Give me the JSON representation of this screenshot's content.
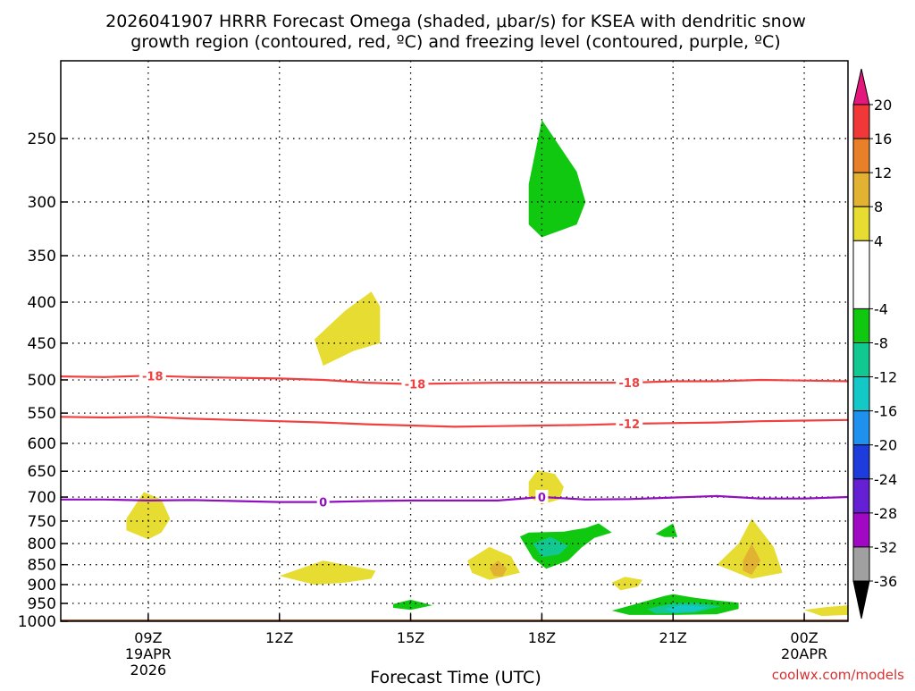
{
  "chart_data": {
    "type": "heatmap",
    "title_line1": "2026041907 HRRR Forecast Omega (shaded, μbar/s) for KSEA with dendritic snow",
    "title_line2": "growth region (contoured, red, ºC) and freezing level (contoured, purple, ºC)",
    "xlabel": "Forecast Time (UTC)",
    "credit": "coolwx.com/models",
    "ylim": [
      1000,
      200
    ],
    "xlim_hours": [
      7,
      25
    ],
    "y_ticks": [
      250,
      300,
      350,
      400,
      450,
      500,
      550,
      600,
      650,
      700,
      750,
      800,
      850,
      900,
      950,
      1000
    ],
    "x_ticks": [
      {
        "hour": 9,
        "label": "09Z",
        "date": "19APR",
        "year": "2026"
      },
      {
        "hour": 12,
        "label": "12Z",
        "date": "",
        "year": ""
      },
      {
        "hour": 15,
        "label": "15Z",
        "date": "",
        "year": ""
      },
      {
        "hour": 18,
        "label": "18Z",
        "date": "",
        "year": ""
      },
      {
        "hour": 21,
        "label": "21Z",
        "date": "",
        "year": ""
      },
      {
        "hour": 24,
        "label": "00Z",
        "date": "20APR",
        "year": ""
      }
    ],
    "colorbar": {
      "labels": [
        "20",
        "16",
        "12",
        "8",
        "4",
        "-4",
        "-8",
        "-12",
        "-16",
        "-20",
        "-24",
        "-28",
        "-32",
        "-36"
      ],
      "levels": [
        {
          "from": 16,
          "to": 20,
          "color": "#f03838"
        },
        {
          "from": 12,
          "to": 16,
          "color": "#e8802a"
        },
        {
          "from": 8,
          "to": 12,
          "color": "#e2b232"
        },
        {
          "from": 4,
          "to": 8,
          "color": "#e6dc32"
        },
        {
          "from": -4,
          "to": 4,
          "color": "#ffffff"
        },
        {
          "from": -8,
          "to": -4,
          "color": "#10c810"
        },
        {
          "from": -12,
          "to": -8,
          "color": "#10c890"
        },
        {
          "from": -16,
          "to": -12,
          "color": "#14c8c8"
        },
        {
          "from": -20,
          "to": -16,
          "color": "#1e90ee"
        },
        {
          "from": -24,
          "to": -20,
          "color": "#1e3cdc"
        },
        {
          "from": -28,
          "to": -24,
          "color": "#6420d2"
        },
        {
          "from": -32,
          "to": -28,
          "color": "#a008c4"
        },
        {
          "from": -36,
          "to": -32,
          "color": "#a0a0a0"
        }
      ],
      "top_arrow_color": "#e4187c",
      "bottom_arrow_color": "#000000"
    },
    "contours": [
      {
        "name": "dgz-18",
        "label": "-18",
        "color": "#f04040",
        "points": [
          [
            7,
            495
          ],
          [
            8,
            496
          ],
          [
            9,
            494
          ],
          [
            10,
            496
          ],
          [
            11,
            497
          ],
          [
            12,
            498
          ],
          [
            13,
            500
          ],
          [
            14,
            504
          ],
          [
            15,
            506
          ],
          [
            16,
            505
          ],
          [
            17,
            504
          ],
          [
            18,
            504
          ],
          [
            19,
            504
          ],
          [
            20,
            504
          ],
          [
            21,
            502
          ],
          [
            22,
            502
          ],
          [
            23,
            500
          ],
          [
            24,
            501
          ],
          [
            25,
            502
          ]
        ],
        "label_hours": [
          9.1,
          15.1,
          20.0
        ]
      },
      {
        "name": "dgz-12",
        "label": "-12",
        "color": "#f04040",
        "points": [
          [
            7,
            556
          ],
          [
            8,
            557
          ],
          [
            9,
            556
          ],
          [
            10,
            559
          ],
          [
            11,
            561
          ],
          [
            12,
            563
          ],
          [
            13,
            565
          ],
          [
            14,
            568
          ],
          [
            15,
            570
          ],
          [
            16,
            572
          ],
          [
            17,
            571
          ],
          [
            18,
            570
          ],
          [
            19,
            569
          ],
          [
            20,
            567
          ],
          [
            21,
            566
          ],
          [
            22,
            565
          ],
          [
            23,
            563
          ],
          [
            24,
            562
          ],
          [
            25,
            561
          ]
        ],
        "label_hours": [
          20.0
        ]
      },
      {
        "name": "freezing-0",
        "label": "0",
        "color": "#9010c0",
        "points": [
          [
            7,
            705
          ],
          [
            8,
            705
          ],
          [
            9,
            707
          ],
          [
            10,
            706
          ],
          [
            11,
            708
          ],
          [
            12,
            710
          ],
          [
            13,
            710
          ],
          [
            14,
            708
          ],
          [
            15,
            707
          ],
          [
            16,
            707
          ],
          [
            17,
            707
          ],
          [
            18,
            700
          ],
          [
            19,
            705
          ],
          [
            20,
            704
          ],
          [
            21,
            701
          ],
          [
            22,
            698
          ],
          [
            23,
            703
          ],
          [
            24,
            703
          ],
          [
            25,
            700
          ]
        ],
        "label_hours": [
          13.0,
          18.0
        ]
      }
    ],
    "omega_regions": [
      {
        "name": "green-upper",
        "value": -6,
        "color": "#10c810",
        "points": [
          [
            17.7,
            285
          ],
          [
            18.0,
            237
          ],
          [
            18.8,
            275
          ],
          [
            19.0,
            300
          ],
          [
            18.8,
            320
          ],
          [
            18.0,
            332
          ],
          [
            17.7,
            320
          ]
        ]
      },
      {
        "name": "yellow-400",
        "value": 5,
        "color": "#e6dc32",
        "points": [
          [
            12.8,
            445
          ],
          [
            13.5,
            410
          ],
          [
            14.1,
            388
          ],
          [
            14.3,
            405
          ],
          [
            14.3,
            450
          ],
          [
            13.7,
            460
          ],
          [
            13.0,
            480
          ]
        ]
      },
      {
        "name": "yellow-09z",
        "value": 5,
        "color": "#e6dc32",
        "points": [
          [
            8.5,
            745
          ],
          [
            8.9,
            690
          ],
          [
            9.3,
            705
          ],
          [
            9.5,
            745
          ],
          [
            9.3,
            775
          ],
          [
            9.0,
            790
          ],
          [
            8.5,
            770
          ]
        ]
      },
      {
        "name": "yellow-18z-700",
        "value": 5,
        "color": "#e6dc32",
        "points": [
          [
            17.7,
            670
          ],
          [
            17.9,
            648
          ],
          [
            18.3,
            655
          ],
          [
            18.5,
            680
          ],
          [
            18.4,
            705
          ],
          [
            18.0,
            715
          ],
          [
            17.7,
            700
          ]
        ]
      },
      {
        "name": "yellow-13z",
        "value": 5,
        "color": "#e6dc32",
        "points": [
          [
            12.0,
            878
          ],
          [
            13.0,
            840
          ],
          [
            14.2,
            865
          ],
          [
            14.1,
            885
          ],
          [
            13.5,
            895
          ],
          [
            12.8,
            900
          ]
        ]
      },
      {
        "name": "green-15z",
        "value": -6,
        "color": "#10c810",
        "points": [
          [
            14.6,
            952
          ],
          [
            15.0,
            940
          ],
          [
            15.5,
            955
          ],
          [
            15.0,
            968
          ],
          [
            14.6,
            962
          ]
        ]
      },
      {
        "name": "yellow-17z",
        "value": 6,
        "color": "#e6dc32",
        "points": [
          [
            16.3,
            840
          ],
          [
            16.8,
            808
          ],
          [
            17.3,
            830
          ],
          [
            17.5,
            870
          ],
          [
            16.8,
            888
          ],
          [
            16.4,
            870
          ]
        ]
      },
      {
        "name": "orange-17z",
        "value": 10,
        "color": "#e2b232",
        "points": [
          [
            16.8,
            858
          ],
          [
            17.0,
            840
          ],
          [
            17.2,
            860
          ],
          [
            17.1,
            880
          ],
          [
            16.9,
            878
          ]
        ]
      },
      {
        "name": "green-18z-800",
        "value": -6,
        "color": "#10c810",
        "points": [
          [
            17.5,
            784
          ],
          [
            17.7,
            775
          ],
          [
            18.5,
            773
          ],
          [
            19.0,
            765
          ],
          [
            19.3,
            755
          ],
          [
            19.6,
            775
          ],
          [
            19.2,
            787
          ],
          [
            18.9,
            810
          ],
          [
            18.6,
            840
          ],
          [
            18.1,
            860
          ],
          [
            17.8,
            835
          ]
        ]
      },
      {
        "name": "teal-18z-800",
        "value": -9,
        "color": "#10c890",
        "points": [
          [
            17.8,
            800
          ],
          [
            18.2,
            785
          ],
          [
            18.6,
            805
          ],
          [
            18.4,
            825
          ],
          [
            18.0,
            832
          ]
        ]
      },
      {
        "name": "yellow-20z",
        "value": 5,
        "color": "#e6dc32",
        "points": [
          [
            19.6,
            895
          ],
          [
            19.9,
            880
          ],
          [
            20.3,
            888
          ],
          [
            20.2,
            905
          ],
          [
            19.8,
            915
          ]
        ]
      },
      {
        "name": "green-21z-775",
        "value": -6,
        "color": "#10c810",
        "points": [
          [
            20.6,
            778
          ],
          [
            21.0,
            755
          ],
          [
            21.1,
            785
          ],
          [
            20.8,
            785
          ]
        ]
      },
      {
        "name": "yellow-22z",
        "value": 6,
        "color": "#e6dc32",
        "points": [
          [
            22.0,
            850
          ],
          [
            22.5,
            800
          ],
          [
            22.8,
            745
          ],
          [
            23.3,
            808
          ],
          [
            23.5,
            870
          ],
          [
            22.8,
            885
          ]
        ]
      },
      {
        "name": "orange-22z",
        "value": 9,
        "color": "#e2b232",
        "points": [
          [
            22.6,
            840
          ],
          [
            22.8,
            800
          ],
          [
            23.0,
            840
          ],
          [
            22.8,
            875
          ],
          [
            22.6,
            865
          ]
        ]
      },
      {
        "name": "green-21z-950",
        "value": -6,
        "color": "#10c810",
        "points": [
          [
            19.6,
            970
          ],
          [
            20.2,
            950
          ],
          [
            20.8,
            930
          ],
          [
            21.0,
            925
          ],
          [
            21.5,
            935
          ],
          [
            22.0,
            942
          ],
          [
            22.5,
            948
          ],
          [
            22.5,
            965
          ],
          [
            22.0,
            980
          ],
          [
            21.0,
            982
          ],
          [
            20.0,
            982
          ]
        ]
      },
      {
        "name": "teal-21z-950",
        "value": -10,
        "color": "#10c890",
        "points": [
          [
            20.4,
            965
          ],
          [
            21.0,
            950
          ],
          [
            21.5,
            948
          ],
          [
            22.1,
            958
          ],
          [
            21.5,
            975
          ],
          [
            21.0,
            978
          ],
          [
            20.6,
            978
          ]
        ]
      },
      {
        "name": "cyan-21z-950",
        "value": -13,
        "color": "#14c8c8",
        "points": [
          [
            20.8,
            965
          ],
          [
            21.2,
            955
          ],
          [
            21.8,
            960
          ],
          [
            21.5,
            972
          ],
          [
            21.0,
            975
          ]
        ]
      },
      {
        "name": "yellow-24z-960",
        "value": 5,
        "color": "#e6dc32",
        "points": [
          [
            24.0,
            968
          ],
          [
            24.5,
            960
          ],
          [
            25.0,
            955
          ],
          [
            25.0,
            982
          ],
          [
            24.4,
            985
          ]
        ]
      }
    ],
    "ground": {
      "top_pressure": 995,
      "color": "#a0522d"
    }
  }
}
